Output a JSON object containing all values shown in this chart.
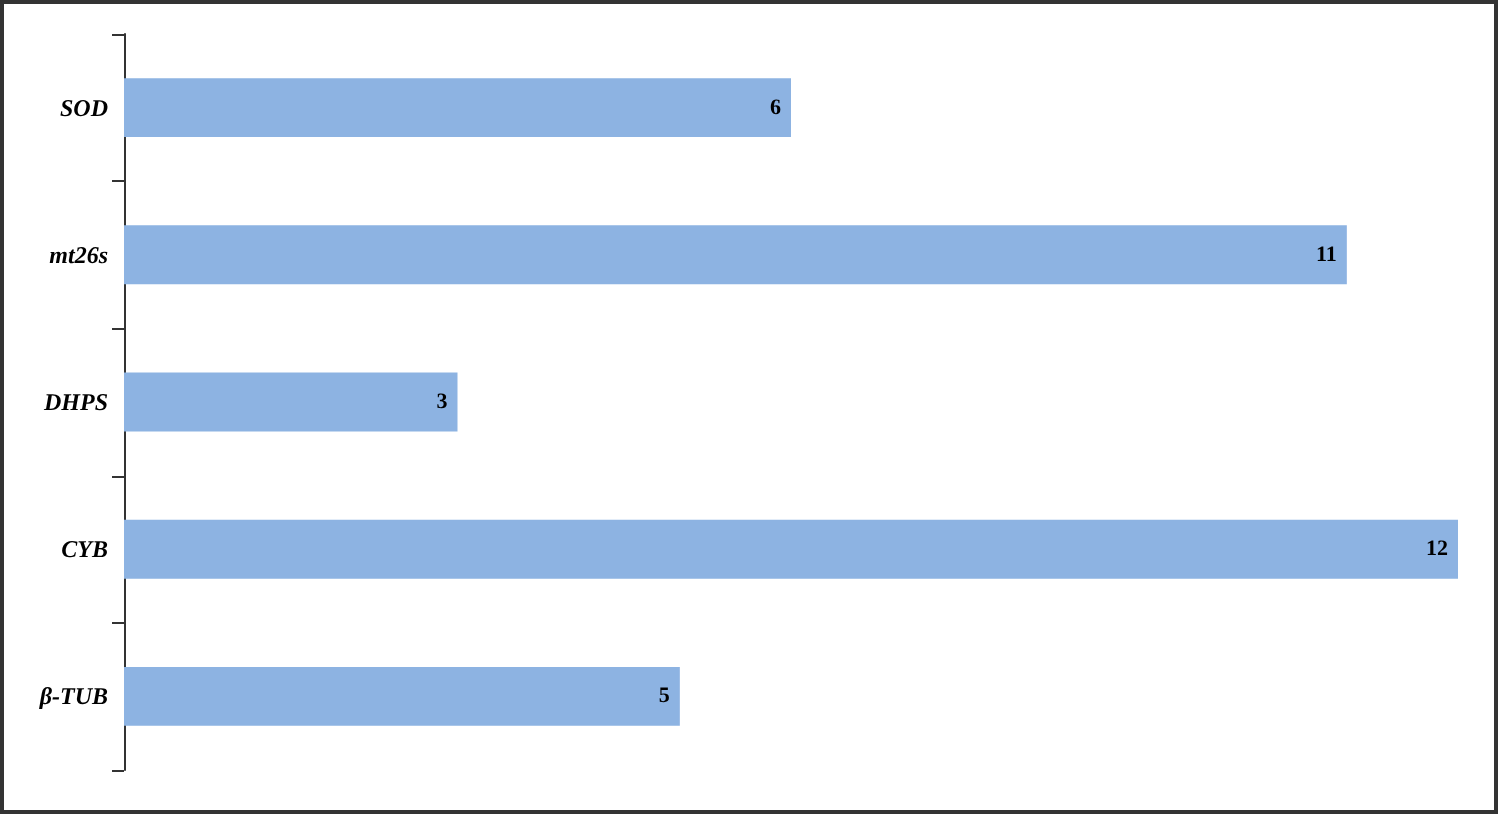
{
  "chart_data": {
    "type": "bar",
    "orientation": "horizontal",
    "categories": [
      "SOD",
      "mt26s",
      "DHPS",
      "CYB",
      "β-TUB"
    ],
    "values": [
      6,
      11,
      3,
      12,
      5
    ],
    "color": "#8db3e2",
    "data_labels": true,
    "grid": false,
    "tick_labels": "y"
  }
}
